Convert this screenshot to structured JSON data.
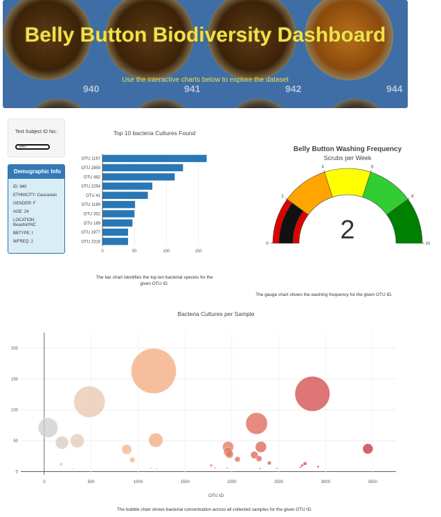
{
  "hero": {
    "title": "Belly Button Biodiversity Dashboard",
    "subtitle": "Use the interactive charts below to explore the dataset",
    "dish_numbers": [
      "940",
      "941",
      "942",
      "944"
    ]
  },
  "selector": {
    "label": "Test Subject ID No.:",
    "value": "940"
  },
  "demographics": {
    "title": "Demographic Info",
    "rows": [
      "ID: 940",
      "ETHNICITY: Caucasian",
      "GENDER: F",
      "AGE: 24",
      "LOCATION:\nBeaufort/NC",
      "BBTYPE: I",
      "WFREQ: 2"
    ]
  },
  "captions": {
    "bar": "The bar chart identifies the top ten bacterial species for the given OTU ID.",
    "gauge": "The gauge chart shows the washing frequency for the given OTU ID.",
    "bubble": "The bubble chart shows bacterial concentration across all collected samples for the given OTU ID."
  },
  "colors": {
    "bar": "#2a77b5",
    "gauge_bands": [
      "#e00000",
      "#ffa500",
      "#ffff00",
      "#32cd32",
      "#008000"
    ],
    "hero_bg": "#3e6ea5",
    "title_yellow": "#f2e04a"
  },
  "chart_data": [
    {
      "type": "bar",
      "orientation": "horizontal",
      "title": "Top 10 bacteria Cultures Found",
      "categories": [
        "OTU 1167",
        "OTU 2859",
        "OTU 482",
        "OTU 2264",
        "OTU 41",
        "OTU 1189",
        "OTU 352",
        "OTU 189",
        "OTU 1977",
        "OTU 2318"
      ],
      "values": [
        163,
        126,
        113,
        78,
        71,
        51,
        50,
        47,
        40,
        40
      ],
      "xticks": [
        "0",
        "50",
        "100",
        "150"
      ],
      "xlim": [
        0,
        170
      ]
    },
    {
      "type": "gauge",
      "title": "Belly Button Washing Frequency",
      "subtitle": "Scrubs per Week",
      "value": 2,
      "range": [
        0,
        10
      ],
      "ticks": [
        "0",
        "2",
        "4",
        "6",
        "8",
        "10"
      ],
      "bands": [
        [
          0,
          2
        ],
        [
          2,
          4
        ],
        [
          4,
          6
        ],
        [
          6,
          8
        ],
        [
          8,
          10
        ]
      ]
    },
    {
      "type": "scatter",
      "title": "Bacteria Cultures per Sample",
      "xlabel": "OTU ID",
      "xlim": [
        -250,
        3750
      ],
      "ylim": [
        -5,
        225
      ],
      "xticks": [
        0,
        500,
        1000,
        1500,
        2000,
        2500,
        3000,
        3500
      ],
      "yticks": [
        0,
        50,
        100,
        150,
        200
      ],
      "points": [
        {
          "x": 41,
          "y": 71
        },
        {
          "x": 189,
          "y": 47
        },
        {
          "x": 352,
          "y": 50
        },
        {
          "x": 482,
          "y": 113
        },
        {
          "x": 1167,
          "y": 163
        },
        {
          "x": 1189,
          "y": 51
        },
        {
          "x": 2264,
          "y": 78
        },
        {
          "x": 2859,
          "y": 126
        },
        {
          "x": 3450,
          "y": 37
        },
        {
          "x": 1960,
          "y": 40
        },
        {
          "x": 1960,
          "y": 32
        },
        {
          "x": 1975,
          "y": 28
        },
        {
          "x": 2240,
          "y": 27
        },
        {
          "x": 2310,
          "y": 40
        },
        {
          "x": 2290,
          "y": 21
        },
        {
          "x": 2060,
          "y": 20
        },
        {
          "x": 880,
          "y": 36
        },
        {
          "x": 940,
          "y": 19
        },
        {
          "x": 2400,
          "y": 14
        },
        {
          "x": 2780,
          "y": 13
        },
        {
          "x": 2750,
          "y": 10
        },
        {
          "x": 2920,
          "y": 8
        },
        {
          "x": 2730,
          "y": 7
        },
        {
          "x": 180,
          "y": 12
        },
        {
          "x": 1780,
          "y": 10
        },
        {
          "x": 1820,
          "y": 6
        },
        {
          "x": 1140,
          "y": 6
        },
        {
          "x": 1200,
          "y": 4
        },
        {
          "x": 2480,
          "y": 5
        },
        {
          "x": 2300,
          "y": 5
        },
        {
          "x": 1950,
          "y": 6
        },
        {
          "x": 300,
          "y": 4
        }
      ]
    }
  ]
}
